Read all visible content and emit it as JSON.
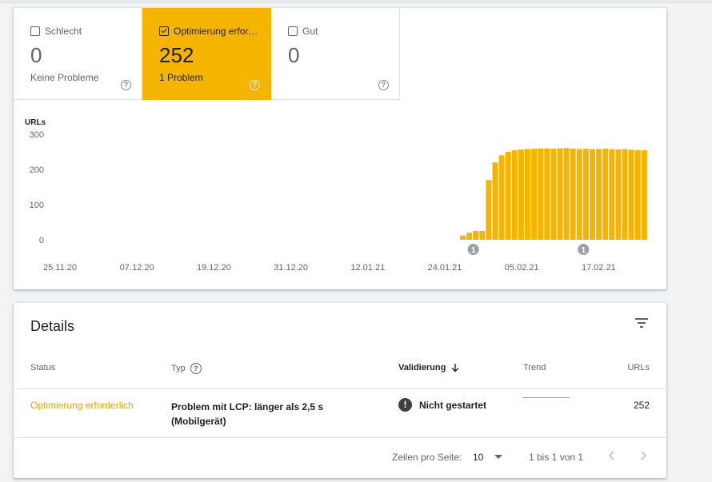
{
  "tiles": [
    {
      "label": "Schlecht",
      "count": "0",
      "subtitle": "Keine Probleme",
      "checked": false,
      "active": false
    },
    {
      "label": "Optimierung erfor…",
      "count": "252",
      "subtitle": "1 Problem",
      "checked": true,
      "active": true
    },
    {
      "label": "Gut",
      "count": "0",
      "subtitle": "",
      "checked": false,
      "active": false
    }
  ],
  "chart_data": {
    "type": "bar",
    "ylabel": "URLs",
    "ylim": [
      0,
      300
    ],
    "yticks": [
      "300",
      "200",
      "100",
      "0"
    ],
    "xticks": [
      "25.11.20",
      "07.12.20",
      "19.12.20",
      "31.12.20",
      "12.01.21",
      "24.01.21",
      "05.02.21",
      "17.02.21"
    ],
    "color": "#f4b400",
    "values": [
      12,
      20,
      25,
      25,
      170,
      220,
      240,
      250,
      255,
      257,
      258,
      259,
      260,
      260,
      259,
      260,
      261,
      259,
      258,
      259,
      258,
      258,
      259,
      258,
      257,
      258,
      256,
      255,
      255
    ],
    "annotations": [
      {
        "label": "1",
        "bar_index": 1
      },
      {
        "label": "1",
        "bar_index": 18
      }
    ]
  },
  "details": {
    "title": "Details",
    "columns": {
      "status": "Status",
      "type": "Typ",
      "validation": "Validierung",
      "trend": "Trend",
      "urls": "URLs"
    },
    "rows": [
      {
        "status": "Optimierung erforderlich",
        "type_line1": "Problem mit LCP: länger als 2,5 s",
        "type_line2": "(Mobilgerät)",
        "validation": "Nicht gestartet",
        "urls": "252"
      }
    ],
    "footer": {
      "rows_label": "Zeilen pro Seite:",
      "rows_value": "10",
      "range": "1 bis 1 von 1"
    }
  }
}
